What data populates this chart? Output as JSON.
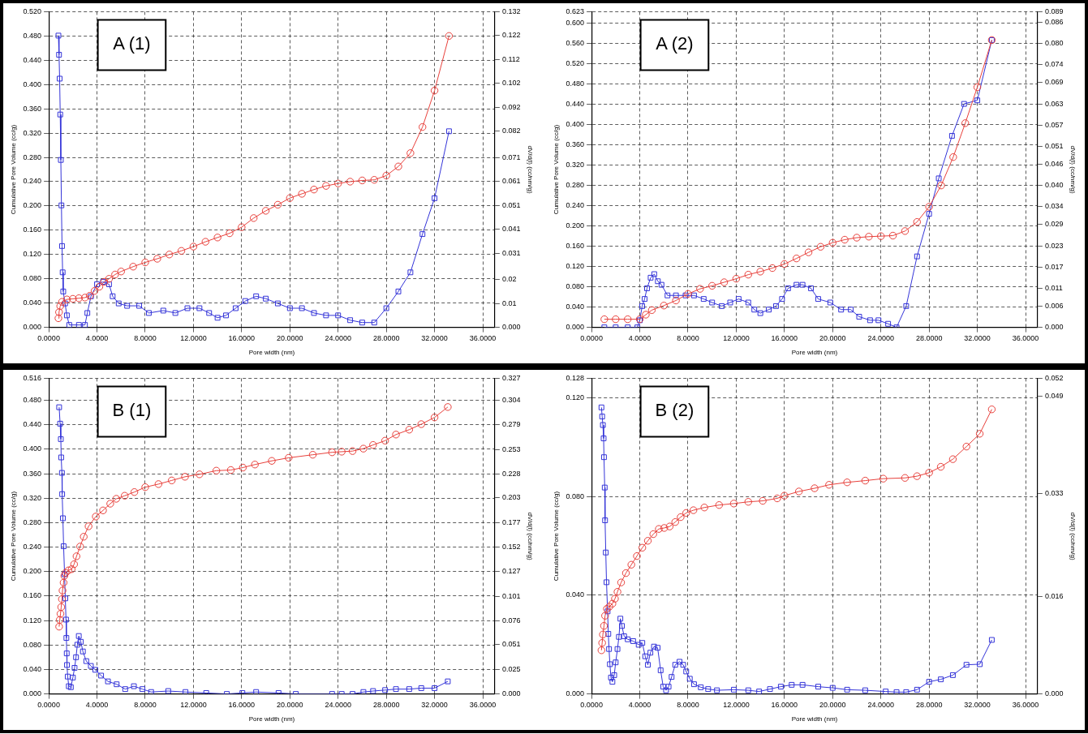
{
  "chart_data": [
    {
      "type": "line",
      "xlabel": "Pore width (nm)",
      "ylabel": "Cumulative Pore Volume (cc/g)",
      "y2label": "dV/d(l) (cc/nm/g)",
      "annotations": [
        "A (1)"
      ],
      "grid": true,
      "legend": false,
      "line_style": "solid",
      "xlim": [
        0,
        37
      ],
      "xticks": [
        {
          "value": 0,
          "label": "0.0000"
        },
        {
          "value": 4,
          "label": "4.0000"
        },
        {
          "value": 8,
          "label": "8.0000"
        },
        {
          "value": 12,
          "label": "12.0000"
        },
        {
          "value": 16,
          "label": "16.0000"
        },
        {
          "value": 20,
          "label": "20.0000"
        },
        {
          "value": 24,
          "label": "24.0000"
        },
        {
          "value": 28,
          "label": "28.0000"
        },
        {
          "value": 32,
          "label": "32.0000"
        },
        {
          "value": 36,
          "label": "36.0000"
        }
      ],
      "ylim": [
        0,
        0.52
      ],
      "yticks": [
        {
          "value": 0,
          "label": "0.000"
        },
        {
          "value": 0.04,
          "label": "0.040"
        },
        {
          "value": 0.08,
          "label": "0.080"
        },
        {
          "value": 0.12,
          "label": "0.120"
        },
        {
          "value": 0.16,
          "label": "0.160"
        },
        {
          "value": 0.2,
          "label": "0.200"
        },
        {
          "value": 0.24,
          "label": "0.240"
        },
        {
          "value": 0.28,
          "label": "0.280"
        },
        {
          "value": 0.32,
          "label": "0.320"
        },
        {
          "value": 0.36,
          "label": "0.360"
        },
        {
          "value": 0.4,
          "label": "0.400"
        },
        {
          "value": 0.44,
          "label": "0.440"
        },
        {
          "value": 0.48,
          "label": "0.480"
        },
        {
          "value": 0.52,
          "label": "0.520"
        }
      ],
      "y2lim": [
        0,
        0.132
      ],
      "y2ticks": [
        {
          "value": 0,
          "label": "0.000"
        },
        0.01,
        0.02,
        0.031,
        0.041,
        0.051,
        0.061,
        0.071,
        0.082,
        0.092,
        0.102,
        0.112,
        0.122,
        0.132
      ],
      "series": [
        {
          "color": "#e8413c",
          "marker": "circle",
          "x": [
            0.8,
            0.85,
            0.95,
            1.1,
            1.5,
            2.0,
            2.5,
            3.0,
            3.4,
            3.8,
            4.2,
            4.6,
            5.0,
            5.5,
            6.0,
            7,
            8,
            9,
            10,
            11,
            12,
            13,
            14,
            15,
            16,
            17,
            18,
            19,
            20,
            21,
            22,
            23,
            24,
            25,
            26,
            27,
            28,
            29,
            30,
            31,
            32,
            33.2
          ],
          "values": [
            0.015,
            0.025,
            0.035,
            0.042,
            0.046,
            0.047,
            0.048,
            0.049,
            0.052,
            0.06,
            0.067,
            0.075,
            0.08,
            0.087,
            0.092,
            0.1,
            0.107,
            0.113,
            0.12,
            0.126,
            0.133,
            0.141,
            0.148,
            0.155,
            0.165,
            0.18,
            0.192,
            0.202,
            0.213,
            0.22,
            0.227,
            0.233,
            0.237,
            0.24,
            0.242,
            0.243,
            0.25,
            0.265,
            0.287,
            0.33,
            0.39,
            0.48
          ]
        },
        {
          "color": "#3434d8",
          "marker": "square",
          "axis": "y2",
          "x": [
            0.8,
            0.85,
            0.9,
            0.95,
            1.0,
            1.05,
            1.1,
            1.15,
            1.2,
            1.35,
            1.5,
            1.7,
            2.5,
            3.0,
            3.2,
            3.5,
            4.0,
            4.5,
            5.0,
            5.3,
            5.8,
            6.5,
            7.5,
            8.3,
            9.5,
            10.5,
            11.5,
            12.5,
            13.3,
            14.0,
            14.7,
            15.5,
            16.3,
            17.2,
            18.0,
            19.0,
            20.0,
            21.0,
            22.0,
            23.0,
            24.0,
            25.0,
            26.0,
            27.0,
            28.0,
            29.0,
            30.0,
            31.0,
            32.0,
            33.2
          ],
          "values": [
            0.122,
            0.114,
            0.104,
            0.089,
            0.07,
            0.051,
            0.034,
            0.023,
            0.015,
            0.01,
            0.005,
            0.001,
            0.001,
            0.001,
            0.006,
            0.013,
            0.018,
            0.019,
            0.018,
            0.013,
            0.01,
            0.009,
            0.009,
            0.006,
            0.007,
            0.006,
            0.008,
            0.008,
            0.006,
            0.004,
            0.005,
            0.008,
            0.011,
            0.013,
            0.012,
            0.01,
            0.008,
            0.008,
            0.006,
            0.005,
            0.005,
            0.003,
            0.002,
            0.002,
            0.008,
            0.015,
            0.023,
            0.039,
            0.054,
            0.082
          ]
        }
      ]
    },
    {
      "type": "line",
      "xlabel": "Pore width (nm)",
      "ylabel": "Cumulative Pore Volume (cc/g)",
      "y2label": "dV/d(l) (cc/nm/g)",
      "annotations": [
        "A (2)"
      ],
      "grid": true,
      "legend": false,
      "line_style": "solid",
      "xlim": [
        0,
        37
      ],
      "xticks": [
        {
          "value": 0,
          "label": "0.0000"
        },
        {
          "value": 4,
          "label": "4.0000"
        },
        {
          "value": 8,
          "label": "8.0000"
        },
        {
          "value": 12,
          "label": "12.0000"
        },
        {
          "value": 16,
          "label": "16.0000"
        },
        {
          "value": 20,
          "label": "20.0000"
        },
        {
          "value": 24,
          "label": "24.0000"
        },
        {
          "value": 28,
          "label": "28.0000"
        },
        {
          "value": 32,
          "label": "32.0000"
        },
        {
          "value": 36,
          "label": "36.0000"
        }
      ],
      "ylim": [
        0,
        0.623
      ],
      "yticks": [
        {
          "value": 0,
          "label": "0.000"
        },
        {
          "value": 0.04,
          "label": "0.040"
        },
        {
          "value": 0.08,
          "label": "0.080"
        },
        {
          "value": 0.12,
          "label": "0.120"
        },
        {
          "value": 0.16,
          "label": "0.160"
        },
        {
          "value": 0.2,
          "label": "0.200"
        },
        {
          "value": 0.24,
          "label": "0.240"
        },
        {
          "value": 0.28,
          "label": "0.280"
        },
        {
          "value": 0.32,
          "label": "0.320"
        },
        {
          "value": 0.36,
          "label": "0.360"
        },
        {
          "value": 0.4,
          "label": "0.400"
        },
        {
          "value": 0.44,
          "label": "0.440"
        },
        {
          "value": 0.48,
          "label": "0.480"
        },
        {
          "value": 0.52,
          "label": "0.520"
        },
        {
          "value": 0.56,
          "label": "0.560"
        },
        {
          "value": 0.6,
          "label": "0.600"
        },
        0.623
      ],
      "y2lim": [
        0,
        0.089
      ],
      "y2ticks": [
        {
          "value": 0,
          "label": "0.000"
        },
        0.006,
        0.011,
        0.017,
        0.023,
        0.029,
        0.034,
        {
          "value": 0.04,
          "label": "0.040"
        },
        0.046,
        0.051,
        0.057,
        0.063,
        0.069,
        0.074,
        {
          "value": 0.08,
          "label": "0.080"
        },
        0.086,
        0.089
      ],
      "series": [
        {
          "color": "#e8413c",
          "marker": "circle",
          "x": [
            1.06,
            2,
            3,
            4,
            4.5,
            5,
            6,
            7,
            8,
            9,
            10,
            11,
            12,
            13,
            14,
            15,
            16,
            17,
            18,
            19,
            20,
            21,
            22,
            23,
            24,
            25,
            26,
            27,
            28,
            29,
            30,
            31,
            32,
            33.2
          ],
          "values": [
            0.016,
            0.016,
            0.016,
            0.016,
            0.025,
            0.034,
            0.043,
            0.053,
            0.066,
            0.076,
            0.082,
            0.089,
            0.096,
            0.104,
            0.11,
            0.117,
            0.125,
            0.136,
            0.148,
            0.159,
            0.167,
            0.173,
            0.177,
            0.179,
            0.18,
            0.181,
            0.19,
            0.208,
            0.238,
            0.28,
            0.336,
            0.403,
            0.474,
            0.567
          ]
        },
        {
          "color": "#3434d8",
          "marker": "square",
          "axis": "y2",
          "x": [
            1.06,
            2,
            3,
            3.8,
            4.0,
            4.2,
            4.4,
            4.6,
            4.9,
            5.2,
            5.5,
            5.8,
            6.3,
            7,
            7.8,
            8.5,
            9.3,
            10,
            10.8,
            11.5,
            12.2,
            13,
            13.5,
            14,
            14.7,
            15.3,
            15.8,
            16.3,
            17,
            17.5,
            18.2,
            18.8,
            19.8,
            20.7,
            21.5,
            22.2,
            23.1,
            23.8,
            24.6,
            25.3,
            26.1,
            27,
            28,
            28.8,
            29.9,
            30.9,
            32,
            33.2
          ],
          "values": [
            0,
            0,
            0,
            0,
            0.002,
            0.006,
            0.008,
            0.011,
            0.014,
            0.015,
            0.013,
            0.012,
            0.009,
            0.009,
            0.009,
            0.009,
            0.008,
            0.007,
            0.006,
            0.007,
            0.008,
            0.007,
            0.005,
            0.004,
            0.005,
            0.006,
            0.008,
            0.011,
            0.012,
            0.012,
            0.011,
            0.008,
            0.007,
            0.005,
            0.005,
            0.003,
            0.002,
            0.002,
            0.001,
            0,
            0.006,
            0.02,
            0.032,
            0.042,
            0.054,
            0.063,
            0.064,
            0.081
          ]
        }
      ]
    },
    {
      "type": "line",
      "xlabel": "Pore width (nm)",
      "ylabel": "Cumulative Pore Volume (cc/g)",
      "y2label": "dV/d(l) (cc/nm/g)",
      "annotations": [
        "B (1)"
      ],
      "grid": true,
      "legend": false,
      "line_style": "solid",
      "xlim": [
        0,
        37
      ],
      "xticks": [
        {
          "value": 0,
          "label": "0.0000"
        },
        {
          "value": 4,
          "label": "4.0000"
        },
        {
          "value": 8,
          "label": "8.0000"
        },
        {
          "value": 12,
          "label": "12.0000"
        },
        {
          "value": 16,
          "label": "16.0000"
        },
        {
          "value": 20,
          "label": "20.0000"
        },
        {
          "value": 24,
          "label": "24.0000"
        },
        {
          "value": 28,
          "label": "28.0000"
        },
        {
          "value": 32,
          "label": "32.0000"
        },
        {
          "value": 36,
          "label": "36.0000"
        }
      ],
      "ylim": [
        0,
        0.516
      ],
      "yticks": [
        {
          "value": 0,
          "label": "0.000"
        },
        {
          "value": 0.04,
          "label": "0.040"
        },
        {
          "value": 0.08,
          "label": "0.080"
        },
        {
          "value": 0.12,
          "label": "0.120"
        },
        {
          "value": 0.16,
          "label": "0.160"
        },
        {
          "value": 0.2,
          "label": "0.200"
        },
        {
          "value": 0.24,
          "label": "0.240"
        },
        {
          "value": 0.28,
          "label": "0.280"
        },
        {
          "value": 0.32,
          "label": "0.320"
        },
        {
          "value": 0.36,
          "label": "0.360"
        },
        {
          "value": 0.4,
          "label": "0.400"
        },
        {
          "value": 0.44,
          "label": "0.440"
        },
        {
          "value": 0.48,
          "label": "0.480"
        },
        0.516
      ],
      "y2lim": [
        0,
        0.327
      ],
      "y2ticks": [
        {
          "value": 0,
          "label": "0.000"
        },
        0.025,
        0.051,
        0.076,
        0.101,
        0.127,
        0.152,
        0.177,
        0.203,
        0.228,
        0.253,
        0.279,
        0.304,
        0.327
      ],
      "series": [
        {
          "color": "#e8413c",
          "marker": "circle",
          "x": [
            0.86,
            0.91,
            0.97,
            1.03,
            1.09,
            1.14,
            1.23,
            1.29,
            1.4,
            1.63,
            1.9,
            2.1,
            2.3,
            2.6,
            2.9,
            3.3,
            3.9,
            4.5,
            5.1,
            5.6,
            6.3,
            7.1,
            8,
            9.1,
            10.2,
            11.3,
            12.5,
            13.9,
            15.1,
            16.1,
            17.1,
            18.5,
            19.9,
            21.9,
            23.5,
            24.3,
            25.2,
            26.1,
            26.9,
            27.9,
            28.8,
            29.9,
            30.9,
            32,
            33.1
          ],
          "values": [
            0.11,
            0.121,
            0.131,
            0.142,
            0.155,
            0.169,
            0.182,
            0.193,
            0.198,
            0.202,
            0.204,
            0.212,
            0.225,
            0.241,
            0.257,
            0.274,
            0.29,
            0.3,
            0.311,
            0.319,
            0.324,
            0.33,
            0.338,
            0.343,
            0.349,
            0.355,
            0.359,
            0.365,
            0.366,
            0.37,
            0.375,
            0.381,
            0.386,
            0.391,
            0.395,
            0.396,
            0.397,
            0.401,
            0.407,
            0.414,
            0.424,
            0.432,
            0.441,
            0.452,
            0.469
          ]
        },
        {
          "color": "#3434d8",
          "marker": "square",
          "axis": "y2",
          "x": [
            0.86,
            0.94,
            1.0,
            1.03,
            1.09,
            1.11,
            1.17,
            1.23,
            1.31,
            1.37,
            1.43,
            1.46,
            1.49,
            1.51,
            1.57,
            1.66,
            1.83,
            2.0,
            2.14,
            2.26,
            2.37,
            2.49,
            2.66,
            2.83,
            3.11,
            3.49,
            3.86,
            4.34,
            4.91,
            5.63,
            6.34,
            7.06,
            7.77,
            8.49,
            9.91,
            11.34,
            13.06,
            14.77,
            16.06,
            17.2,
            19.06,
            20.49,
            23.5,
            24.3,
            25.2,
            26.1,
            26.9,
            27.9,
            28.8,
            29.9,
            30.9,
            32.0,
            33.1
          ],
          "values": [
            0.297,
            0.28,
            0.264,
            0.245,
            0.229,
            0.207,
            0.182,
            0.153,
            0.124,
            0.099,
            0.077,
            0.058,
            0.042,
            0.03,
            0.018,
            0.008,
            0.007,
            0.017,
            0.027,
            0.038,
            0.051,
            0.06,
            0.054,
            0.044,
            0.034,
            0.029,
            0.025,
            0.019,
            0.013,
            0.01,
            0.005,
            0.008,
            0.005,
            0.002,
            0.003,
            0.002,
            0.001,
            0,
            0.001,
            0.002,
            0.001,
            0,
            0,
            0,
            0,
            0.002,
            0.003,
            0.004,
            0.005,
            0.005,
            0.006,
            0.006,
            0.013
          ]
        }
      ]
    },
    {
      "type": "line",
      "xlabel": "Pore width (nm)",
      "ylabel": "Cumulative Pore Volume (cc/g)",
      "y2label": "dV/d(l) (cc/nm/g)",
      "annotations": [
        "B (2)"
      ],
      "grid": true,
      "legend": false,
      "line_style": "solid",
      "xlim": [
        0,
        37
      ],
      "xticks": [
        {
          "value": 0,
          "label": "0.0000"
        },
        {
          "value": 4,
          "label": "4.0000"
        },
        {
          "value": 8,
          "label": "8.0000"
        },
        {
          "value": 12,
          "label": "12.0000"
        },
        {
          "value": 16,
          "label": "16.0000"
        },
        {
          "value": 20,
          "label": "20.0000"
        },
        {
          "value": 24,
          "label": "24.0000"
        },
        {
          "value": 28,
          "label": "28.0000"
        },
        {
          "value": 32,
          "label": "32.0000"
        },
        {
          "value": 36,
          "label": "36.0000"
        }
      ],
      "ylim": [
        0,
        0.128
      ],
      "yticks": [
        {
          "value": 0,
          "label": "0.000"
        },
        {
          "value": 0.04,
          "label": "0.040"
        },
        {
          "value": 0.08,
          "label": "0.080"
        },
        {
          "value": 0.12,
          "label": "0.120"
        },
        0.128
      ],
      "y2lim": [
        0,
        0.052
      ],
      "y2ticks": [
        {
          "value": 0,
          "label": "0.000"
        },
        0.016,
        0.033,
        0.049,
        0.052
      ],
      "series": [
        {
          "color": "#e8413c",
          "marker": "circle",
          "x": [
            0.82,
            0.88,
            0.94,
            1.03,
            1.12,
            1.27,
            1.48,
            1.73,
            1.94,
            2.15,
            2.45,
            2.85,
            3.3,
            3.76,
            4.21,
            4.67,
            5.12,
            5.58,
            6.03,
            6.48,
            6.94,
            7.39,
            7.85,
            8.45,
            9.36,
            10.58,
            11.8,
            13.0,
            14.2,
            15.4,
            16.0,
            17.2,
            18.5,
            19.7,
            21.2,
            22.7,
            24.2,
            26.0,
            27.0,
            28.0,
            28.97,
            29.97,
            31.1,
            32.2,
            33.2
          ],
          "values": [
            0.0177,
            0.0207,
            0.0241,
            0.0276,
            0.0317,
            0.0345,
            0.0354,
            0.0366,
            0.0386,
            0.0414,
            0.0452,
            0.049,
            0.0524,
            0.0559,
            0.0593,
            0.0621,
            0.0648,
            0.0669,
            0.0673,
            0.0679,
            0.0697,
            0.0717,
            0.0734,
            0.0745,
            0.0756,
            0.0766,
            0.0772,
            0.0779,
            0.0783,
            0.0793,
            0.0804,
            0.0821,
            0.0834,
            0.0848,
            0.0858,
            0.0865,
            0.0873,
            0.0876,
            0.0883,
            0.0897,
            0.0921,
            0.0952,
            0.1003,
            0.1055,
            0.1154
          ]
        },
        {
          "color": "#3434d8",
          "marker": "square",
          "axis": "y2",
          "x": [
            0.82,
            0.88,
            0.94,
            1.0,
            1.03,
            1.09,
            1.12,
            1.18,
            1.24,
            1.33,
            1.39,
            1.45,
            1.52,
            1.61,
            1.73,
            1.88,
            2.0,
            2.15,
            2.27,
            2.39,
            2.52,
            2.7,
            3.0,
            3.45,
            3.91,
            4.21,
            4.45,
            4.67,
            4.88,
            5.18,
            5.48,
            5.73,
            5.94,
            6.18,
            6.39,
            6.64,
            6.94,
            7.3,
            7.6,
            7.85,
            8.15,
            8.5,
            9.06,
            9.67,
            10.4,
            11.8,
            13.0,
            13.9,
            14.8,
            15.7,
            16.6,
            17.5,
            18.8,
            20.0,
            21.2,
            22.7,
            24.4,
            25.3,
            26.1,
            27.0,
            28.0,
            28.97,
            29.97,
            31.1,
            32.2,
            33.2
          ],
          "values": [
            0.0472,
            0.0457,
            0.0443,
            0.0421,
            0.039,
            0.034,
            0.0286,
            0.0233,
            0.0184,
            0.0136,
            0.0099,
            0.0074,
            0.0049,
            0.0027,
            0.002,
            0.0031,
            0.0052,
            0.0074,
            0.0094,
            0.0124,
            0.0112,
            0.0095,
            0.009,
            0.0087,
            0.0081,
            0.0084,
            0.0062,
            0.0048,
            0.0068,
            0.0078,
            0.0076,
            0.0039,
            0.0012,
            0.0006,
            0.0012,
            0.0028,
            0.0048,
            0.0053,
            0.0048,
            0.0037,
            0.0025,
            0.0016,
            0.0011,
            0.0008,
            0.0006,
            0.0007,
            0.0006,
            0.0004,
            0.0008,
            0.0012,
            0.0015,
            0.0015,
            0.0012,
            0.001,
            0.0007,
            0.0006,
            0.0004,
            0.0003,
            0.0003,
            0.0007,
            0.002,
            0.0024,
            0.0031,
            0.0048,
            0.0049,
            0.0089
          ]
        }
      ]
    }
  ]
}
